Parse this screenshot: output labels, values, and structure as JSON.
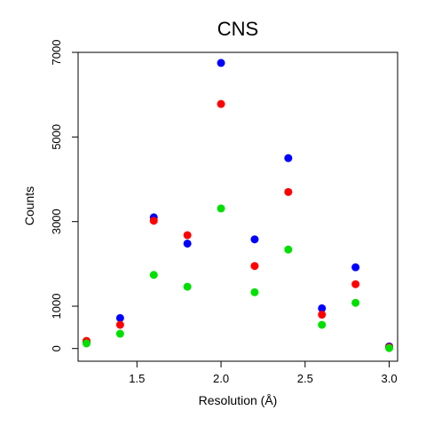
{
  "chart_data": {
    "type": "scatter",
    "title": "CNS",
    "xlabel": "Resolution (Å)",
    "ylabel": "Counts",
    "xlim": [
      1.15,
      3.05
    ],
    "ylim": [
      -300,
      7000
    ],
    "xticks": [
      1.5,
      2.0,
      2.5,
      3.0
    ],
    "xtick_labels": [
      "1.5",
      "2.0",
      "2.5",
      "3.0"
    ],
    "yticks": [
      0,
      1000,
      3000,
      5000,
      7000
    ],
    "ytick_labels": [
      "0",
      "1000",
      "3000",
      "5000",
      "7000"
    ],
    "grid": false,
    "x": [
      1.2,
      1.4,
      1.6,
      1.8,
      2.0,
      2.2,
      2.4,
      2.6,
      2.8,
      3.0
    ],
    "series": [
      {
        "color": "#0000ff",
        "values": [
          150,
          720,
          3100,
          2480,
          6750,
          2580,
          4500,
          950,
          1920,
          50
        ]
      },
      {
        "color": "#ff0000",
        "values": [
          180,
          560,
          3020,
          2680,
          5780,
          1950,
          3700,
          800,
          1520,
          30
        ]
      },
      {
        "color": "#00e000",
        "values": [
          120,
          350,
          1740,
          1460,
          3310,
          1330,
          2340,
          560,
          1080,
          10
        ]
      }
    ]
  }
}
